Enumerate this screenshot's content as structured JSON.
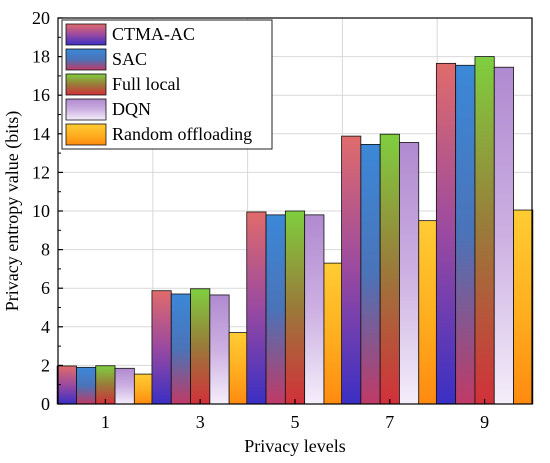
{
  "chart_data": {
    "type": "bar",
    "categories": [
      "1",
      "3",
      "5",
      "7",
      "9"
    ],
    "xlabel": "Privacy levels",
    "ylabel": "Privacy entropy value (bits)",
    "ylim": [
      0,
      20
    ],
    "yticks": [
      0,
      2,
      4,
      6,
      8,
      10,
      12,
      14,
      16,
      18,
      20
    ],
    "grid": true,
    "legend_position": "top-left",
    "series": [
      {
        "name": "CTMA-AC",
        "values": [
          1.97,
          5.87,
          9.95,
          13.88,
          17.65
        ],
        "colors": {
          "top": "#e06b6b",
          "mid": "#9a4aa0",
          "bottom": "#3a2fc4"
        }
      },
      {
        "name": "SAC",
        "values": [
          1.9,
          5.7,
          9.8,
          13.45,
          17.55
        ],
        "colors": {
          "top": "#3b88d8",
          "mid": "#4b73b8",
          "bottom": "#c03a66"
        }
      },
      {
        "name": "Full local",
        "values": [
          1.98,
          5.97,
          10.0,
          13.98,
          18.0
        ],
        "colors": {
          "top": "#7fcf3f",
          "mid": "#9a7a3a",
          "bottom": "#d2303a"
        }
      },
      {
        "name": "DQN",
        "values": [
          1.85,
          5.65,
          9.8,
          13.55,
          17.45
        ],
        "colors": {
          "top": "#b08ad0",
          "mid": "#cdb0e2",
          "bottom": "#f4eefa"
        }
      },
      {
        "name": "Random offloading",
        "values": [
          1.55,
          3.7,
          7.3,
          9.5,
          10.05
        ],
        "colors": {
          "top": "#ffcc33",
          "mid": "#ffb020",
          "bottom": "#ff8a10"
        }
      }
    ]
  }
}
